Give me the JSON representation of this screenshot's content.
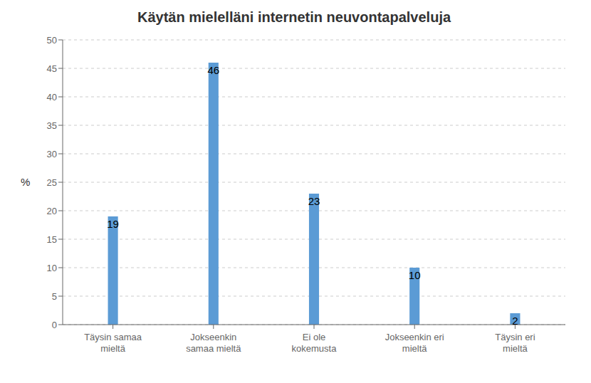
{
  "chart_data": {
    "type": "bar",
    "title": "Käytän mielelläni internetin neuvontapalveluja",
    "categories": [
      "Täysin samaa\nmieltä",
      "Jokseenkin\nsamaa mieltä",
      "Ei ole\nkokemusta",
      "Jokseenkin eri\nmieltä",
      "Täysin eri\nmieltä"
    ],
    "values": [
      19,
      46,
      23,
      10,
      2
    ],
    "color": "#5B9BD5",
    "ylabel": "%",
    "ylim": [
      0,
      50
    ],
    "yticks": [
      0,
      5,
      10,
      15,
      20,
      25,
      30,
      35,
      40,
      45,
      50
    ],
    "grid": true,
    "data_labels": true
  }
}
